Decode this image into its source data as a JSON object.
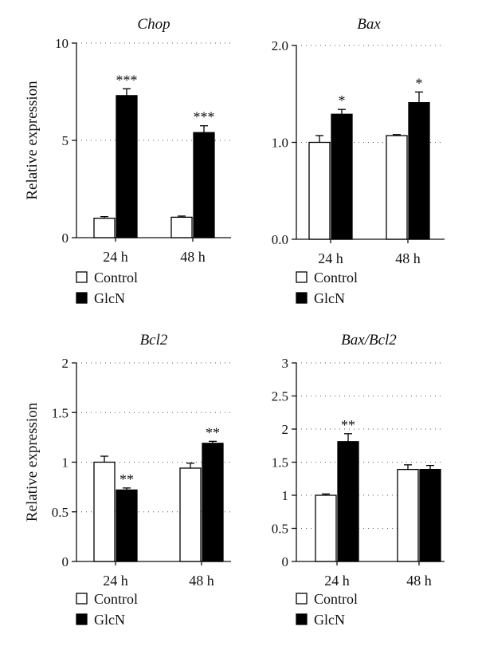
{
  "chart_data": [
    {
      "type": "bar",
      "title": "Chop",
      "ylabel": "Relative expression",
      "categories": [
        "24 h",
        "48 h"
      ],
      "yticks": [
        "0",
        "5",
        "10"
      ],
      "ylim": [
        0,
        10
      ],
      "grid": true,
      "legend_position": "bottom-left",
      "series": [
        {
          "name": "Control",
          "values": [
            1.0,
            1.05
          ],
          "errors": [
            0.08,
            0.06
          ]
        },
        {
          "name": "GlcN",
          "values": [
            7.3,
            5.4
          ],
          "errors": [
            0.35,
            0.35
          ]
        }
      ],
      "significance": [
        [
          "",
          "***"
        ],
        [
          "",
          "***"
        ]
      ]
    },
    {
      "type": "bar",
      "title": "Bax",
      "ylabel": "",
      "categories": [
        "24 h",
        "48 h"
      ],
      "yticks": [
        "0.0",
        "1.0",
        "2.0"
      ],
      "ylim": [
        0,
        2
      ],
      "grid": true,
      "legend_position": "bottom-left",
      "series": [
        {
          "name": "Control",
          "values": [
            1.0,
            1.07
          ],
          "errors": [
            0.07,
            0.01
          ]
        },
        {
          "name": "GlcN",
          "values": [
            1.29,
            1.41
          ],
          "errors": [
            0.05,
            0.11
          ]
        }
      ],
      "significance": [
        [
          "",
          "*"
        ],
        [
          "",
          "*"
        ]
      ]
    },
    {
      "type": "bar",
      "title": "Bcl2",
      "ylabel": "Relative expression",
      "categories": [
        "24 h",
        "48 h"
      ],
      "yticks": [
        "0",
        "0.5",
        "1",
        "1.5",
        "2"
      ],
      "ylim": [
        0,
        2
      ],
      "grid": true,
      "legend_position": "bottom-left",
      "series": [
        {
          "name": "Control",
          "values": [
            1.0,
            0.94
          ],
          "errors": [
            0.06,
            0.05
          ]
        },
        {
          "name": "GlcN",
          "values": [
            0.72,
            1.19
          ],
          "errors": [
            0.02,
            0.02
          ]
        }
      ],
      "significance": [
        [
          "",
          "**"
        ],
        [
          "",
          "**"
        ]
      ]
    },
    {
      "type": "bar",
      "title": "Bax/Bcl2",
      "ylabel": "",
      "categories": [
        "24 h",
        "48 h"
      ],
      "yticks": [
        "0",
        "0.5",
        "1",
        "1.5",
        "2",
        "2.5",
        "3"
      ],
      "ylim": [
        0,
        3
      ],
      "grid": true,
      "legend_position": "bottom-left",
      "series": [
        {
          "name": "Control",
          "values": [
            1.0,
            1.39
          ],
          "errors": [
            0.02,
            0.07
          ]
        },
        {
          "name": "GlcN",
          "values": [
            1.81,
            1.39
          ],
          "errors": [
            0.12,
            0.06
          ]
        }
      ],
      "significance": [
        [
          "",
          "**"
        ],
        [
          "",
          ""
        ]
      ]
    }
  ],
  "legend": {
    "items": [
      {
        "label": "Control",
        "color": "#ffffff"
      },
      {
        "label": "GlcN",
        "color": "#000000"
      }
    ]
  }
}
